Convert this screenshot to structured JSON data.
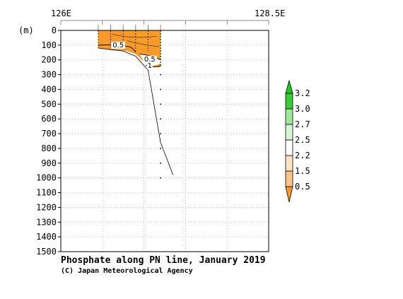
{
  "chart_data": {
    "type": "contour",
    "title": "Phosphate along PN line, January 2019",
    "credit": "(C) Japan Meteorological Agency",
    "xlabel": "",
    "ylabel": "(m)",
    "x_tick_labels": [
      "126E",
      "128.5E"
    ],
    "x_range": [
      126.0,
      128.5
    ],
    "y_range": [
      0,
      1500
    ],
    "y_inverted": true,
    "y_ticks": [
      0,
      100,
      200,
      300,
      400,
      500,
      600,
      700,
      800,
      900,
      1000,
      1100,
      1200,
      1300,
      1400,
      1500
    ],
    "grid": true,
    "station_longitudes": [
      126.45,
      126.6,
      126.75,
      126.9,
      127.05,
      127.2
    ],
    "bottom_profile": [
      {
        "lon": 126.45,
        "depth": 120
      },
      {
        "lon": 126.75,
        "depth": 140
      },
      {
        "lon": 126.9,
        "depth": 175
      },
      {
        "lon": 127.05,
        "depth": 270
      },
      {
        "lon": 127.2,
        "depth": 760
      },
      {
        "lon": 127.35,
        "depth": 980
      }
    ],
    "filled_region": {
      "level_range": [
        0.5,
        1.5
      ],
      "color": "#f79a28",
      "lon_range": [
        126.45,
        127.2
      ],
      "depth_range": [
        0,
        250
      ]
    },
    "contour_labels": [
      {
        "text": "0.5",
        "lon": 126.69,
        "depth": 115
      },
      {
        "text": "0.5",
        "lon": 127.07,
        "depth": 210
      },
      {
        "text": "1",
        "lon": 127.07,
        "depth": 255
      }
    ],
    "colorbar": {
      "levels": [
        "0.5",
        "1.5",
        "2.2",
        "2.5",
        "2.7",
        "3.0",
        "3.2"
      ],
      "colors": [
        "#f79a28",
        "#fbc385",
        "#fde3c5",
        "#ffffff",
        "#d8f5d6",
        "#9fe89a",
        "#35cf35"
      ],
      "extend_low_color": "#f79a28",
      "extend_high_color": "#1ccd1c"
    }
  }
}
